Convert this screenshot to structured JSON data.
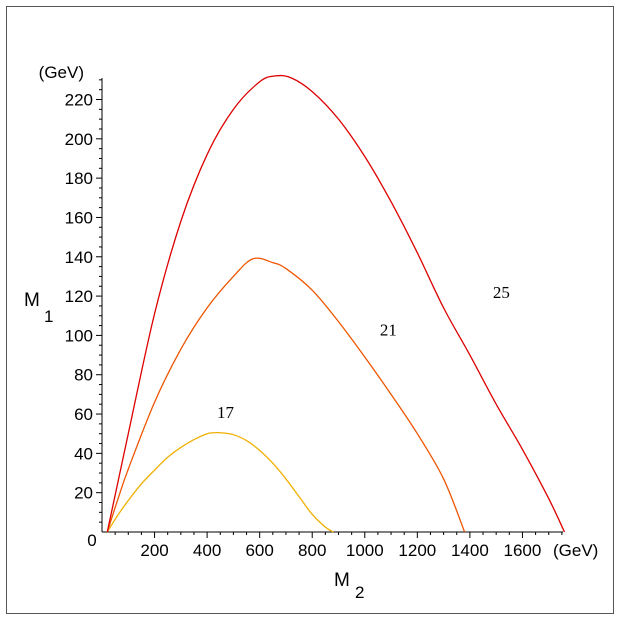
{
  "chart_data": {
    "type": "line",
    "title": "",
    "xlabel": "M",
    "xlabel_sub": "2",
    "ylabel": "M",
    "ylabel_sub": "1",
    "x_unit": "(GeV)",
    "y_unit": "(GeV)",
    "xlim": [
      0,
      1800
    ],
    "ylim": [
      0,
      235
    ],
    "x_ticks": [
      200,
      400,
      600,
      800,
      1000,
      1200,
      1400,
      1600
    ],
    "y_ticks": [
      20,
      40,
      60,
      80,
      100,
      120,
      140,
      160,
      180,
      200,
      220
    ],
    "origin_label": "0",
    "grid": false,
    "legend": "none",
    "series": [
      {
        "label": "17",
        "color": "#f0b000",
        "label_at": [
          470,
          58
        ],
        "x": [
          20,
          60,
          100,
          150,
          200,
          250,
          300,
          350,
          400,
          430,
          450,
          500,
          550,
          600,
          650,
          700,
          750,
          800,
          850,
          880
        ],
        "y": [
          0,
          8.5,
          16,
          24.5,
          31.5,
          38,
          43,
          47,
          50,
          50.5,
          50.5,
          49.5,
          46.5,
          41.5,
          35,
          27,
          18,
          9,
          2.5,
          0
        ]
      },
      {
        "label": "21",
        "color": "#ee5500",
        "label_at": [
          1090,
          100
        ],
        "x": [
          20,
          60,
          100,
          200,
          300,
          400,
          500,
          575,
          650,
          700,
          800,
          900,
          1000,
          1100,
          1200,
          1300,
          1380
        ],
        "y": [
          0,
          16.5,
          32,
          66,
          93,
          114,
          130,
          139,
          137,
          134,
          123,
          107,
          89,
          70,
          50,
          27,
          0
        ]
      },
      {
        "label": "25",
        "color": "#dd0000",
        "label_at": [
          1520,
          119
        ],
        "x": [
          20,
          60,
          100,
          200,
          300,
          400,
          500,
          600,
          660,
          720,
          800,
          900,
          1000,
          1100,
          1200,
          1300,
          1400,
          1500,
          1600,
          1700,
          1760
        ],
        "y": [
          0,
          25,
          50,
          111,
          158,
          192,
          215,
          229,
          232,
          231,
          224,
          210,
          191,
          168,
          142,
          114,
          90,
          65,
          42,
          17,
          0
        ]
      }
    ]
  }
}
